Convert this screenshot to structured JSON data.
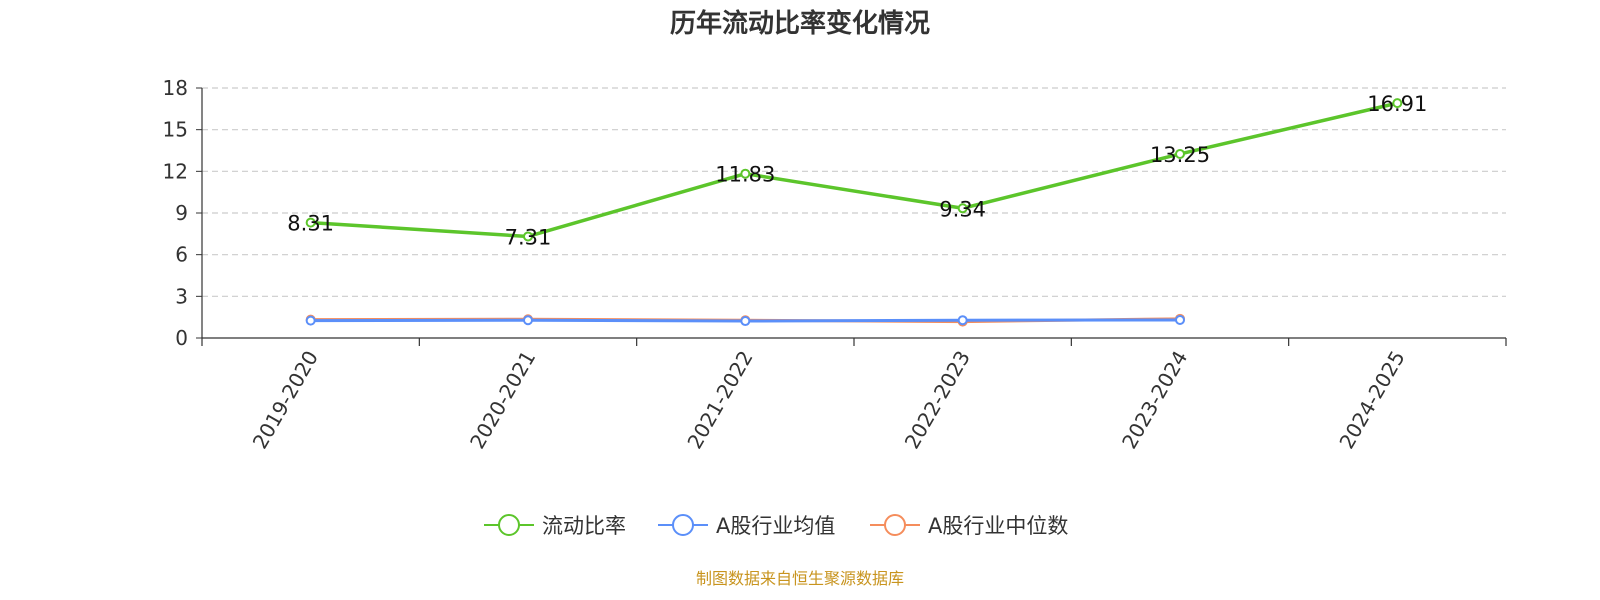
{
  "chart_data": {
    "type": "line",
    "title": "历年流动比率变化情况",
    "categories": [
      "2019-2020",
      "2020-2021",
      "2021-2022",
      "2022-2023",
      "2023-2024",
      "2024-2025"
    ],
    "ylim": [
      0,
      18
    ],
    "yticks": [
      0,
      3,
      6,
      9,
      12,
      15,
      18
    ],
    "grid": true,
    "legend_position": "bottom",
    "series": [
      {
        "name": "流动比率",
        "color": "#5cc52b",
        "values": [
          8.31,
          7.31,
          11.83,
          9.34,
          13.25,
          16.91
        ],
        "labels": [
          "8.31",
          "7.31",
          "11.83",
          "9.34",
          "13.25",
          "16.91"
        ]
      },
      {
        "name": "A股行业均值",
        "color": "#5b8ff9",
        "values": [
          1.25,
          1.28,
          1.22,
          1.28,
          1.3,
          null
        ]
      },
      {
        "name": "A股行业中位数",
        "color": "#f58d5c",
        "values": [
          1.32,
          1.35,
          1.28,
          1.18,
          1.38,
          null
        ]
      }
    ]
  },
  "source_text": "制图数据来自恒生聚源数据库",
  "source_color": "#c8941e"
}
